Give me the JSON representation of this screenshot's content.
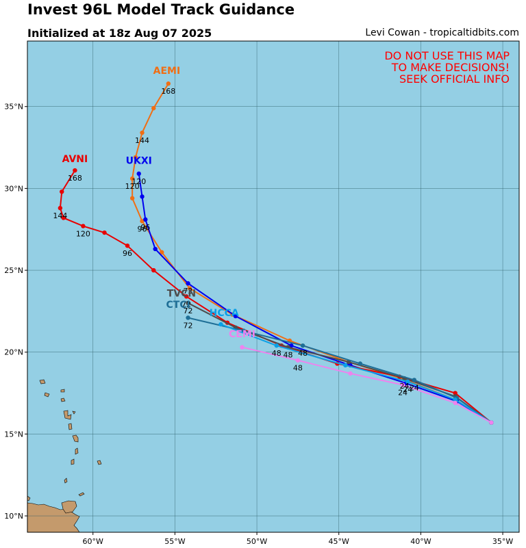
{
  "title": "Invest 96L Model Track Guidance",
  "subtitle": "Initialized at 18z Aug 07 2025",
  "credit": "Levi Cowan - tropicaltidbits.com",
  "warning": [
    "DO NOT USE THIS MAP",
    "TO MAKE DECISIONS!",
    "SEEK OFFICIAL INFO"
  ],
  "colors": {
    "ocean": "#94cfe4",
    "land": "#c49a6c",
    "warning": "#ff0000",
    "grid": "#2f5f6a"
  },
  "map": {
    "lon_range": [
      -64,
      -34
    ],
    "lat_range": [
      9,
      39
    ],
    "lon_ticks": [
      {
        "value": -60,
        "label": "60°W"
      },
      {
        "value": -55,
        "label": "55°W"
      },
      {
        "value": -50,
        "label": "50°W"
      },
      {
        "value": -45,
        "label": "45°W"
      },
      {
        "value": -40,
        "label": "40°W"
      },
      {
        "value": -35,
        "label": "35°W"
      }
    ],
    "lat_ticks": [
      {
        "value": 10,
        "label": "10°N"
      },
      {
        "value": 15,
        "label": "15°N"
      },
      {
        "value": 20,
        "label": "20°N"
      },
      {
        "value": 25,
        "label": "25°N"
      },
      {
        "value": 30,
        "label": "30°N"
      },
      {
        "value": 35,
        "label": "35°N"
      }
    ]
  },
  "models": [
    {
      "name": "AEMI",
      "color": "#f06e14",
      "points": [
        [
          -35.7,
          15.7
        ],
        [
          -37.9,
          17.1
        ],
        [
          -41.2,
          18.4
        ],
        [
          -44.4,
          19.4
        ],
        [
          -48.0,
          20.7
        ],
        [
          -51.5,
          22.3
        ],
        [
          -54.1,
          23.9
        ],
        [
          -55.8,
          26.1
        ],
        [
          -57.0,
          28.0
        ],
        [
          -57.6,
          29.4
        ],
        [
          -57.6,
          30.6
        ],
        [
          -57.4,
          31.9
        ],
        [
          -57.0,
          33.4
        ],
        [
          -56.3,
          34.9
        ],
        [
          -55.4,
          36.4
        ]
      ],
      "labels": [
        {
          "text": "96",
          "pt": 8
        },
        {
          "text": "120",
          "pt": 10
        },
        {
          "text": "144",
          "pt": 12
        },
        {
          "text": "168",
          "pt": 14
        }
      ],
      "name_pos": [
        -55.5,
        37.0
      ]
    },
    {
      "name": "UKXI",
      "color": "#0000ee",
      "points": [
        [
          -35.7,
          15.7
        ],
        [
          -37.8,
          17.0
        ],
        [
          -40.9,
          18.1
        ],
        [
          -44.3,
          19.2
        ],
        [
          -47.9,
          20.4
        ],
        [
          -51.3,
          22.2
        ],
        [
          -54.2,
          24.2
        ],
        [
          -56.2,
          26.3
        ],
        [
          -56.8,
          28.1
        ],
        [
          -57.0,
          29.5
        ],
        [
          -57.2,
          30.9
        ]
      ],
      "labels": [
        {
          "text": "72",
          "pt": 6
        },
        {
          "text": "96",
          "pt": 8
        },
        {
          "text": "120",
          "pt": 10
        }
      ],
      "name_pos": [
        -57.2,
        31.5
      ]
    },
    {
      "name": "AVNI",
      "color": "#e80000",
      "points": [
        [
          -35.7,
          15.7
        ],
        [
          -37.9,
          17.5
        ],
        [
          -41.3,
          18.5
        ],
        [
          -45.1,
          19.3
        ],
        [
          -48.5,
          20.4
        ],
        [
          -51.8,
          21.8
        ],
        [
          -54.3,
          23.4
        ],
        [
          -56.3,
          25.0
        ],
        [
          -57.9,
          26.5
        ],
        [
          -59.3,
          27.3
        ],
        [
          -60.6,
          27.7
        ],
        [
          -61.8,
          28.2
        ],
        [
          -62.0,
          28.8
        ],
        [
          -61.9,
          29.8
        ],
        [
          -61.1,
          31.1
        ]
      ],
      "labels": [
        {
          "text": "72",
          "pt": 6
        },
        {
          "text": "96",
          "pt": 8
        },
        {
          "text": "120",
          "pt": 10
        },
        {
          "text": "144",
          "pt": 12
        },
        {
          "text": "168",
          "pt": 14
        }
      ],
      "name_pos": [
        -61.1,
        31.6
      ]
    },
    {
      "name": "TVCN",
      "color": "#4d4d4d",
      "points": [
        [
          -35.7,
          15.7
        ],
        [
          -37.9,
          17.3
        ],
        [
          -41.0,
          18.4
        ],
        [
          -44.4,
          19.4
        ],
        [
          -48.1,
          20.3
        ],
        [
          -51.3,
          21.5
        ],
        [
          -54.2,
          23.0
        ]
      ],
      "labels": [
        {
          "text": "24",
          "pt": 2
        },
        {
          "text": "48",
          "pt": 4
        },
        {
          "text": "72",
          "pt": 6
        }
      ],
      "name_pos": [
        -54.6,
        23.4
      ]
    },
    {
      "name": "CTCI",
      "color": "#1e6e96",
      "points": [
        [
          -35.7,
          15.7
        ],
        [
          -37.8,
          17.2
        ],
        [
          -40.4,
          18.3
        ],
        [
          -43.7,
          19.3
        ],
        [
          -47.2,
          20.4
        ],
        [
          -50.8,
          21.3
        ],
        [
          -54.2,
          22.1
        ]
      ],
      "labels": [
        {
          "text": "24",
          "pt": 2
        },
        {
          "text": "48",
          "pt": 4
        },
        {
          "text": "72",
          "pt": 6
        }
      ],
      "name_pos": [
        -54.8,
        22.7
      ]
    },
    {
      "name": "HCCA",
      "color": "#0aa0e6",
      "points": [
        [
          -35.7,
          15.7
        ],
        [
          -37.9,
          17.1
        ],
        [
          -40.8,
          18.2
        ],
        [
          -44.6,
          19.2
        ],
        [
          -48.8,
          20.4
        ],
        [
          -52.2,
          21.7
        ]
      ],
      "labels": [
        {
          "text": "24",
          "pt": 2
        },
        {
          "text": "48",
          "pt": 4
        }
      ],
      "name_pos": [
        -52.0,
        22.2
      ]
    },
    {
      "name": "CEMI",
      "color": "#ee82ee",
      "points": [
        [
          -35.7,
          15.7
        ],
        [
          -37.9,
          16.9
        ],
        [
          -41.1,
          18.0
        ],
        [
          -44.3,
          18.7
        ],
        [
          -47.5,
          19.5
        ],
        [
          -50.9,
          20.3
        ]
      ],
      "labels": [
        {
          "text": "24",
          "pt": 2
        },
        {
          "text": "48",
          "pt": 4
        }
      ],
      "name_pos": [
        -50.9,
        20.9
      ]
    }
  ]
}
